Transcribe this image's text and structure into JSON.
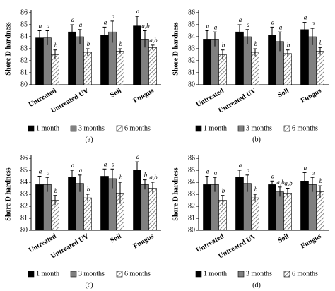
{
  "chart_data": [
    {
      "type": "bar",
      "caption": "(a)",
      "ylabel": "Shore D hardness",
      "ylim": [
        80,
        86
      ],
      "yticks": [
        80,
        81,
        82,
        83,
        84,
        85,
        86
      ],
      "grid": false,
      "categories": [
        "Untreated",
        "Untreated UV",
        "Soil",
        "Fungus"
      ],
      "series": [
        {
          "name": "1 month",
          "color": "#000000",
          "values": [
            83.9,
            84.4,
            84.1,
            84.9
          ],
          "error": [
            0.6,
            0.6,
            0.7,
            0.8
          ],
          "letters": [
            "a",
            "a",
            "a",
            "a"
          ]
        },
        {
          "name": "3 months",
          "color": "#808080",
          "values": [
            83.9,
            84.0,
            84.4,
            83.8
          ],
          "error": [
            0.6,
            0.6,
            0.9,
            0.7
          ],
          "letters": [
            "a",
            "a",
            "a",
            "a,b"
          ]
        },
        {
          "name": "6 months",
          "color": "#ffffff",
          "hatch": true,
          "values": [
            82.5,
            82.7,
            82.8,
            83.1
          ],
          "error": [
            0.4,
            0.3,
            0.2,
            0.2
          ],
          "letters": [
            "b",
            "b",
            "b",
            "a,b"
          ]
        }
      ]
    },
    {
      "type": "bar",
      "caption": "(b)",
      "ylabel": "Shore D hardness",
      "ylim": [
        80,
        86
      ],
      "yticks": [
        80,
        81,
        82,
        83,
        84,
        85,
        86
      ],
      "grid": false,
      "categories": [
        "Untreated",
        "Untreated UV",
        "Soil",
        "Fungus"
      ],
      "series": [
        {
          "name": "1 month",
          "color": "#000000",
          "values": [
            83.8,
            84.4,
            84.1,
            84.6
          ],
          "error": [
            0.7,
            0.6,
            0.7,
            0.6
          ],
          "letters": [
            "a",
            "a",
            "a",
            "a"
          ]
        },
        {
          "name": "3 months",
          "color": "#808080",
          "values": [
            83.8,
            84.0,
            83.6,
            84.0
          ],
          "error": [
            0.6,
            0.6,
            0.8,
            0.7
          ],
          "letters": [
            "a",
            "a",
            "a",
            "a"
          ]
        },
        {
          "name": "6 months",
          "color": "#ffffff",
          "hatch": true,
          "values": [
            82.5,
            82.7,
            82.6,
            82.8
          ],
          "error": [
            0.4,
            0.3,
            0.3,
            0.3
          ],
          "letters": [
            "b",
            "b",
            "b",
            "b"
          ]
        }
      ]
    },
    {
      "type": "bar",
      "caption": "(c)",
      "ylabel": "Shore D hardness",
      "ylim": [
        80,
        86
      ],
      "yticks": [
        80,
        81,
        82,
        83,
        84,
        85,
        86
      ],
      "grid": false,
      "categories": [
        "Untreated",
        "Untreated UV",
        "Soil",
        "Fungus"
      ],
      "series": [
        {
          "name": "1 month",
          "color": "#000000",
          "values": [
            83.8,
            84.4,
            84.5,
            85.0
          ],
          "error": [
            0.7,
            0.6,
            0.6,
            0.7
          ],
          "letters": [
            "a",
            "a",
            "a",
            "a"
          ]
        },
        {
          "name": "3 months",
          "color": "#808080",
          "values": [
            83.8,
            83.9,
            84.3,
            83.8
          ],
          "error": [
            0.6,
            0.7,
            0.8,
            0.4
          ],
          "letters": [
            "a",
            "a",
            "a",
            "b"
          ]
        },
        {
          "name": "6 months",
          "color": "#ffffff",
          "hatch": true,
          "values": [
            82.5,
            82.7,
            83.1,
            83.5
          ],
          "error": [
            0.4,
            0.3,
            0.9,
            0.5
          ],
          "letters": [
            "b",
            "b",
            "b",
            "a,b"
          ]
        }
      ]
    },
    {
      "type": "bar",
      "caption": "(d)",
      "ylabel": "Shore D hardness",
      "ylim": [
        80,
        86
      ],
      "yticks": [
        80,
        81,
        82,
        83,
        84,
        85,
        86
      ],
      "grid": false,
      "categories": [
        "Untreated",
        "Untreated UV",
        "Soil",
        "Fungus"
      ],
      "series": [
        {
          "name": "1 month",
          "color": "#000000",
          "values": [
            83.8,
            84.4,
            83.8,
            84.1
          ],
          "error": [
            0.7,
            0.6,
            0.3,
            0.7
          ],
          "letters": [
            "a",
            "a",
            "a",
            "a"
          ]
        },
        {
          "name": "3 months",
          "color": "#808080",
          "values": [
            83.8,
            83.9,
            83.2,
            83.8
          ],
          "error": [
            0.6,
            0.7,
            0.4,
            0.6
          ],
          "letters": [
            "a",
            "a",
            "a,b",
            "a"
          ]
        },
        {
          "name": "6 months",
          "color": "#ffffff",
          "hatch": true,
          "values": [
            82.5,
            82.7,
            83.1,
            83.2
          ],
          "error": [
            0.4,
            0.3,
            0.4,
            0.5
          ],
          "letters": [
            "b",
            "b",
            "a,b",
            "b"
          ]
        }
      ]
    }
  ]
}
